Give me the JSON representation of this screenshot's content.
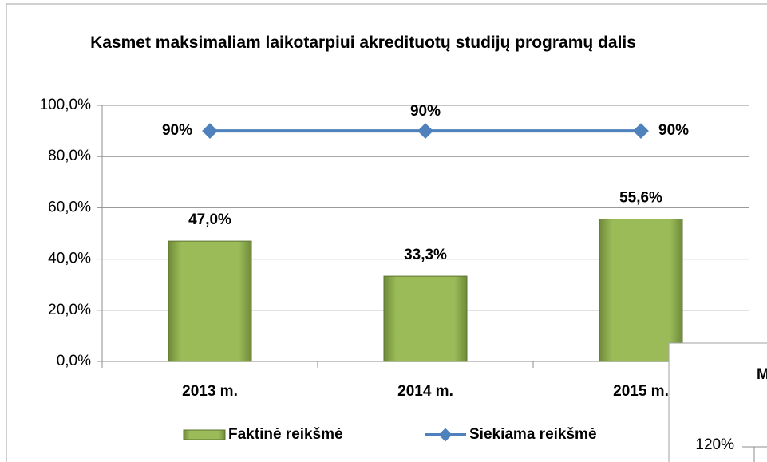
{
  "chart_data": {
    "type": "bar",
    "title": "Kasmet maksimaliam laikotarpiui akredituotų studijų programų dalis",
    "categories": [
      "2013 m.",
      "2014 m.",
      "2015 m."
    ],
    "series": [
      {
        "name": "Faktinė reikšmė",
        "type": "bar",
        "color": "#9bbb59",
        "values": [
          47.0,
          33.3,
          55.6
        ],
        "value_labels": [
          "47,0%",
          "33,3%",
          "55,6%"
        ]
      },
      {
        "name": "Siekiama reikšmė",
        "type": "line",
        "color": "#4f81bd",
        "values": [
          90,
          90,
          90
        ],
        "value_labels": [
          "90%",
          "90%",
          "90%"
        ]
      }
    ],
    "ylim": [
      0,
      100
    ],
    "yticks": [
      {
        "value": 0,
        "label": "0,0%"
      },
      {
        "value": 20,
        "label": "20,0%"
      },
      {
        "value": 40,
        "label": "40,0%"
      },
      {
        "value": 60,
        "label": "60,0%"
      },
      {
        "value": 80,
        "label": "80,0%"
      },
      {
        "value": 100,
        "label": "100,0%"
      }
    ],
    "grid": true,
    "legend": "bottom"
  },
  "overlay": {
    "title": "M",
    "ytick": "120%"
  }
}
